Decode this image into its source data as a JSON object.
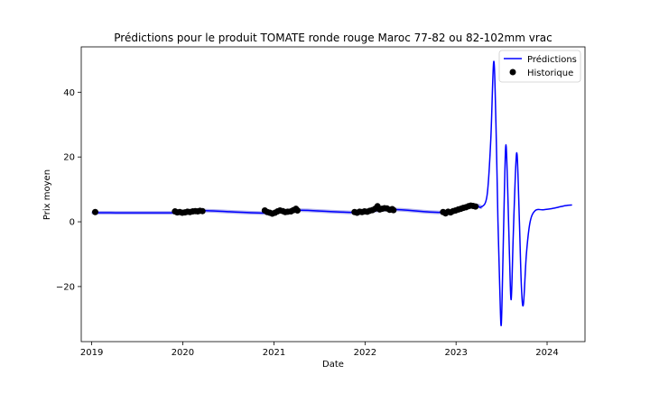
{
  "chart_data": {
    "type": "line",
    "title": "Prédictions pour le produit TOMATE ronde rouge Maroc 77-82 ou 82-102mm vrac",
    "xlabel": "Date",
    "ylabel": "Prix moyen",
    "xlim": [
      "2018-11-20",
      "2024-06-01"
    ],
    "ylim": [
      -37,
      54
    ],
    "x_ticks": [
      "2019",
      "2020",
      "2021",
      "2022",
      "2023",
      "2024"
    ],
    "y_ticks": [
      -20,
      0,
      20,
      40
    ],
    "y_tick_labels": [
      "−20",
      "0",
      "20",
      "40"
    ],
    "legend": {
      "position": "top-right",
      "entries": [
        "Prédictions",
        "Historique"
      ]
    },
    "colors": {
      "predictions": "#0000ff",
      "historique": "#000000",
      "confidence": "#b0b0ee"
    },
    "series": [
      {
        "name": "Prédictions",
        "kind": "line",
        "points": [
          [
            "2019-01-07",
            2.8
          ],
          [
            "2019-12-01",
            2.8
          ],
          [
            "2020-03-01",
            3.5
          ],
          [
            "2020-11-25",
            2.7
          ],
          [
            "2021-04-01",
            3.6
          ],
          [
            "2021-11-20",
            2.9
          ],
          [
            "2022-04-20",
            3.8
          ],
          [
            "2022-11-10",
            2.9
          ],
          [
            "2023-03-15",
            5.0
          ],
          [
            "2023-04-10",
            4.5
          ],
          [
            "2023-05-05",
            8.0
          ],
          [
            "2023-05-20",
            25.0
          ],
          [
            "2023-06-01",
            49.5
          ],
          [
            "2023-06-10",
            30.0
          ],
          [
            "2023-06-18",
            0.0
          ],
          [
            "2023-06-25",
            -20.0
          ],
          [
            "2023-07-01",
            -32.0
          ],
          [
            "2023-07-07",
            -15.0
          ],
          [
            "2023-07-14",
            10.0
          ],
          [
            "2023-07-20",
            23.8
          ],
          [
            "2023-07-27",
            10.0
          ],
          [
            "2023-08-03",
            -10.0
          ],
          [
            "2023-08-10",
            -24.0
          ],
          [
            "2023-08-18",
            -5.0
          ],
          [
            "2023-08-27",
            15.0
          ],
          [
            "2023-09-03",
            20.5
          ],
          [
            "2023-09-12",
            0.0
          ],
          [
            "2023-09-20",
            -20.0
          ],
          [
            "2023-09-28",
            -25.5
          ],
          [
            "2023-10-10",
            -10.0
          ],
          [
            "2023-10-25",
            0.0
          ],
          [
            "2023-11-15",
            3.5
          ],
          [
            "2023-12-15",
            3.7
          ],
          [
            "2024-01-15",
            4.0
          ],
          [
            "2024-02-15",
            4.5
          ],
          [
            "2024-03-15",
            5.0
          ],
          [
            "2024-04-10",
            5.2
          ]
        ]
      },
      {
        "name": "Historique",
        "kind": "scatter",
        "points": [
          [
            "2019-01-15",
            3.0
          ],
          [
            "2019-12-01",
            3.2
          ],
          [
            "2019-12-10",
            2.9
          ],
          [
            "2019-12-20",
            3.0
          ],
          [
            "2019-12-30",
            2.8
          ],
          [
            "2020-01-10",
            2.9
          ],
          [
            "2020-01-20",
            3.1
          ],
          [
            "2020-01-30",
            3.0
          ],
          [
            "2020-02-10",
            3.2
          ],
          [
            "2020-02-20",
            3.3
          ],
          [
            "2020-03-01",
            3.2
          ],
          [
            "2020-03-10",
            3.4
          ],
          [
            "2020-03-20",
            3.3
          ],
          [
            "2020-11-25",
            3.5
          ],
          [
            "2020-12-05",
            3.0
          ],
          [
            "2020-12-15",
            2.8
          ],
          [
            "2020-12-25",
            2.5
          ],
          [
            "2021-01-05",
            2.8
          ],
          [
            "2021-01-15",
            3.2
          ],
          [
            "2021-01-25",
            3.5
          ],
          [
            "2021-02-05",
            3.3
          ],
          [
            "2021-02-15",
            3.0
          ],
          [
            "2021-02-25",
            3.1
          ],
          [
            "2021-03-10",
            3.2
          ],
          [
            "2021-03-20",
            3.6
          ],
          [
            "2021-03-30",
            4.0
          ],
          [
            "2021-04-05",
            3.5
          ],
          [
            "2021-11-20",
            3.0
          ],
          [
            "2021-11-30",
            2.8
          ],
          [
            "2021-12-10",
            3.1
          ],
          [
            "2021-12-20",
            3.0
          ],
          [
            "2021-12-30",
            3.2
          ],
          [
            "2022-01-10",
            3.1
          ],
          [
            "2022-01-20",
            3.4
          ],
          [
            "2022-01-30",
            3.6
          ],
          [
            "2022-02-10",
            4.0
          ],
          [
            "2022-02-20",
            4.8
          ],
          [
            "2022-03-01",
            3.8
          ],
          [
            "2022-03-10",
            4.0
          ],
          [
            "2022-03-20",
            4.2
          ],
          [
            "2022-03-30",
            4.1
          ],
          [
            "2022-04-10",
            3.7
          ],
          [
            "2022-04-20",
            3.9
          ],
          [
            "2022-04-25",
            3.6
          ],
          [
            "2022-11-10",
            3.0
          ],
          [
            "2022-11-20",
            2.6
          ],
          [
            "2022-11-30",
            3.1
          ],
          [
            "2022-12-10",
            2.9
          ],
          [
            "2022-12-20",
            3.3
          ],
          [
            "2022-12-30",
            3.5
          ],
          [
            "2023-01-10",
            3.8
          ],
          [
            "2023-01-20",
            4.0
          ],
          [
            "2023-01-30",
            4.3
          ],
          [
            "2023-02-10",
            4.5
          ],
          [
            "2023-02-20",
            4.8
          ],
          [
            "2023-03-01",
            5.0
          ],
          [
            "2023-03-10",
            4.9
          ],
          [
            "2023-03-20",
            4.7
          ]
        ]
      }
    ]
  }
}
